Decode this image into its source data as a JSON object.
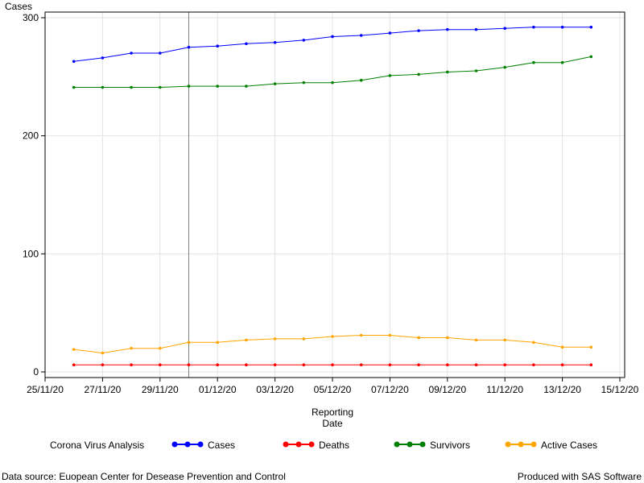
{
  "chart_data": {
    "type": "line",
    "ylabel": "Cases",
    "xlabel_line1": "Reporting",
    "xlabel_line2": "Date",
    "ylim": [
      0,
      300
    ],
    "yticks": [
      0,
      100,
      200,
      300
    ],
    "xticks": [
      "25/11/20",
      "27/11/20",
      "29/11/20",
      "01/12/20",
      "03/12/20",
      "05/12/20",
      "07/12/20",
      "09/12/20",
      "11/12/20",
      "13/12/20",
      "15/12/20"
    ],
    "x": [
      "26/11/20",
      "27/11/20",
      "28/11/20",
      "29/11/20",
      "30/11/20",
      "01/12/20",
      "02/12/20",
      "03/12/20",
      "04/12/20",
      "05/12/20",
      "06/12/20",
      "07/12/20",
      "08/12/20",
      "09/12/20",
      "10/12/20",
      "11/12/20",
      "12/12/20",
      "13/12/20",
      "14/12/20"
    ],
    "reference_line_x": "30/11/20",
    "grid": true,
    "legend_title": "Corona Virus Analysis",
    "legend_position": "bottom",
    "series": [
      {
        "name": "Cases",
        "color": "#0000ff",
        "values": [
          263,
          266,
          270,
          270,
          275,
          276,
          278,
          279,
          281,
          284,
          285,
          287,
          289,
          290,
          290,
          291,
          292,
          292,
          292
        ]
      },
      {
        "name": "Deaths",
        "color": "#ff0000",
        "values": [
          6,
          6,
          6,
          6,
          6,
          6,
          6,
          6,
          6,
          6,
          6,
          6,
          6,
          6,
          6,
          6,
          6,
          6,
          6
        ]
      },
      {
        "name": "Survivors",
        "color": "#008000",
        "values": [
          241,
          241,
          241,
          241,
          242,
          242,
          242,
          244,
          245,
          245,
          247,
          251,
          252,
          254,
          255,
          258,
          262,
          262,
          267
        ]
      },
      {
        "name": "Active Cases",
        "color": "#ffa500",
        "values": [
          19,
          16,
          20,
          20,
          25,
          25,
          27,
          28,
          28,
          30,
          31,
          31,
          29,
          29,
          27,
          27,
          25,
          21,
          21
        ]
      }
    ]
  },
  "footer": {
    "source": "Data source: Euopean Center for Desease Prevention and Control",
    "credit": "Produced with SAS Software"
  }
}
